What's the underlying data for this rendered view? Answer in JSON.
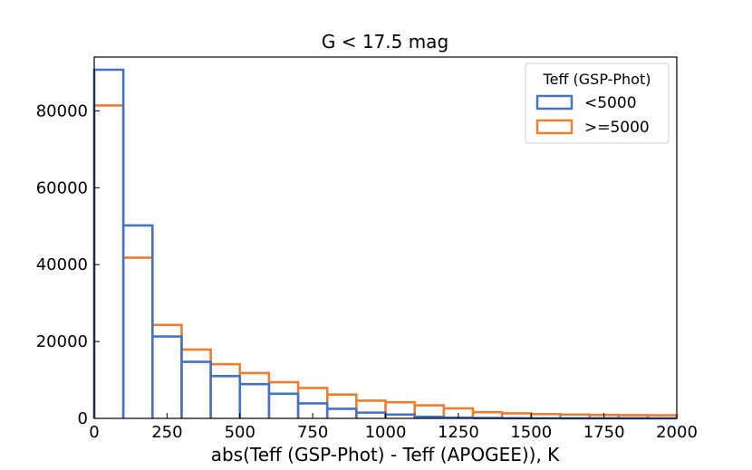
{
  "chart_data": {
    "type": "histogram",
    "title": "G < 17.5 mag",
    "xlabel": "abs(Teff (GSP-Phot) - Teff (APOGEE)), K",
    "ylabel": "",
    "xlim": [
      0,
      2000
    ],
    "ylim": [
      0,
      94000
    ],
    "xticks": [
      0,
      250,
      500,
      750,
      1000,
      1250,
      1500,
      1750,
      2000
    ],
    "yticks": [
      0,
      20000,
      40000,
      60000,
      80000
    ],
    "grid": false,
    "bin_edges": [
      0,
      100,
      200,
      300,
      400,
      500,
      600,
      700,
      800,
      900,
      1000,
      1100,
      1200,
      1300,
      1400,
      1500,
      1600,
      1700,
      1800,
      1900,
      2000
    ],
    "legend": {
      "title": "Teff (GSP-Phot)",
      "placement": "top-right"
    },
    "series": [
      {
        "name": "<5000",
        "color": "#4472c4",
        "values": [
          90700,
          50200,
          21300,
          14700,
          11000,
          8900,
          6400,
          3900,
          2500,
          1500,
          1000,
          400,
          200,
          100,
          50,
          30,
          20,
          10,
          5,
          0
        ]
      },
      {
        "name": ">=5000",
        "color": "#ed7d31",
        "values": [
          81400,
          41800,
          24300,
          17900,
          14100,
          11800,
          9400,
          7900,
          6200,
          4600,
          4200,
          3400,
          2600,
          1600,
          1300,
          1100,
          1000,
          900,
          850,
          800
        ]
      }
    ]
  }
}
